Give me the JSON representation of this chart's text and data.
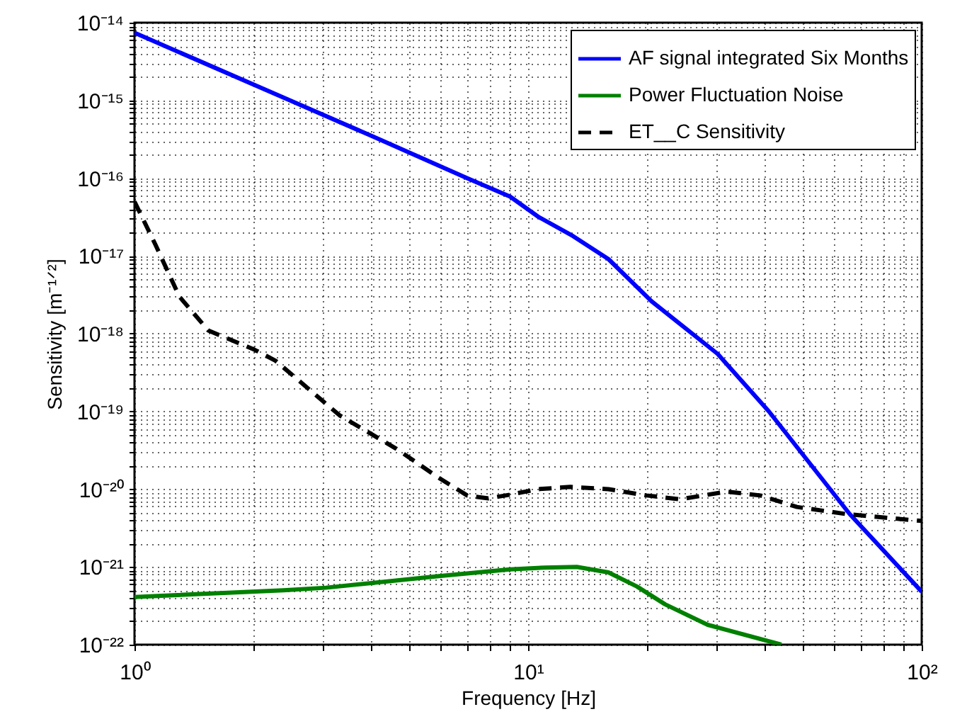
{
  "chart_data": {
    "type": "line",
    "xlabel": "Frequency [Hz]",
    "ylabel": "Sensitivity [m⁻¹ᐟ²]",
    "log": "xy",
    "grid": true,
    "legend": "top right",
    "xlim": [
      1,
      100
    ],
    "ylim": [
      1e-22,
      1e-14
    ],
    "xticks": [
      {
        "value": 1,
        "label": "10⁰"
      },
      {
        "value": 2,
        "label": null
      },
      {
        "value": 3,
        "label": null
      },
      {
        "value": 4,
        "label": null
      },
      {
        "value": 5,
        "label": null
      },
      {
        "value": 6,
        "label": null
      },
      {
        "value": 7,
        "label": null
      },
      {
        "value": 8,
        "label": null
      },
      {
        "value": 9,
        "label": null
      },
      {
        "value": 10,
        "label": "10¹"
      },
      {
        "value": 20,
        "label": null
      },
      {
        "value": 30,
        "label": null
      },
      {
        "value": 40,
        "label": null
      },
      {
        "value": 50,
        "label": null
      },
      {
        "value": 60,
        "label": null
      },
      {
        "value": 70,
        "label": null
      },
      {
        "value": 80,
        "label": null
      },
      {
        "value": 90,
        "label": null
      },
      {
        "value": 100,
        "label": "10²"
      }
    ],
    "yticks": [
      {
        "value": 1e-22,
        "label": "10⁻²²"
      },
      {
        "value": 2e-22,
        "label": null
      },
      {
        "value": 3e-22,
        "label": null
      },
      {
        "value": 4e-22,
        "label": null
      },
      {
        "value": 5e-22,
        "label": null
      },
      {
        "value": 6e-22,
        "label": null
      },
      {
        "value": 7e-22,
        "label": null
      },
      {
        "value": 8e-22,
        "label": null
      },
      {
        "value": 9e-22,
        "label": null
      },
      {
        "value": 1e-21,
        "label": "10⁻²¹"
      },
      {
        "value": 2e-21,
        "label": null
      },
      {
        "value": 3e-21,
        "label": null
      },
      {
        "value": 4e-21,
        "label": null
      },
      {
        "value": 5e-21,
        "label": null
      },
      {
        "value": 6e-21,
        "label": null
      },
      {
        "value": 7e-21,
        "label": null
      },
      {
        "value": 8e-21,
        "label": null
      },
      {
        "value": 9e-21,
        "label": null
      },
      {
        "value": 1e-20,
        "label": "10⁻²⁰"
      },
      {
        "value": 2e-20,
        "label": null
      },
      {
        "value": 3e-20,
        "label": null
      },
      {
        "value": 4e-20,
        "label": null
      },
      {
        "value": 5e-20,
        "label": null
      },
      {
        "value": 6e-20,
        "label": null
      },
      {
        "value": 7e-20,
        "label": null
      },
      {
        "value": 8e-20,
        "label": null
      },
      {
        "value": 9e-20,
        "label": null
      },
      {
        "value": 1e-19,
        "label": "10⁻¹⁹"
      },
      {
        "value": 2e-19,
        "label": null
      },
      {
        "value": 3e-19,
        "label": null
      },
      {
        "value": 4e-19,
        "label": null
      },
      {
        "value": 5e-19,
        "label": null
      },
      {
        "value": 6e-19,
        "label": null
      },
      {
        "value": 7e-19,
        "label": null
      },
      {
        "value": 8e-19,
        "label": null
      },
      {
        "value": 9e-19,
        "label": null
      },
      {
        "value": 1e-18,
        "label": "10⁻¹⁸"
      },
      {
        "value": 2e-18,
        "label": null
      },
      {
        "value": 3e-18,
        "label": null
      },
      {
        "value": 4e-18,
        "label": null
      },
      {
        "value": 5e-18,
        "label": null
      },
      {
        "value": 6e-18,
        "label": null
      },
      {
        "value": 7e-18,
        "label": null
      },
      {
        "value": 8e-18,
        "label": null
      },
      {
        "value": 9e-18,
        "label": null
      },
      {
        "value": 1e-17,
        "label": "10⁻¹⁷"
      },
      {
        "value": 2e-17,
        "label": null
      },
      {
        "value": 3e-17,
        "label": null
      },
      {
        "value": 4e-17,
        "label": null
      },
      {
        "value": 5e-17,
        "label": null
      },
      {
        "value": 6e-17,
        "label": null
      },
      {
        "value": 7e-17,
        "label": null
      },
      {
        "value": 8e-17,
        "label": null
      },
      {
        "value": 9e-17,
        "label": null
      },
      {
        "value": 1e-16,
        "label": "10⁻¹⁶"
      },
      {
        "value": 2e-16,
        "label": null
      },
      {
        "value": 3e-16,
        "label": null
      },
      {
        "value": 4e-16,
        "label": null
      },
      {
        "value": 5e-16,
        "label": null
      },
      {
        "value": 6e-16,
        "label": null
      },
      {
        "value": 7e-16,
        "label": null
      },
      {
        "value": 8e-16,
        "label": null
      },
      {
        "value": 9e-16,
        "label": null
      },
      {
        "value": 1e-15,
        "label": "10⁻¹⁵"
      },
      {
        "value": 2e-15,
        "label": null
      },
      {
        "value": 3e-15,
        "label": null
      },
      {
        "value": 4e-15,
        "label": null
      },
      {
        "value": 5e-15,
        "label": null
      },
      {
        "value": 6e-15,
        "label": null
      },
      {
        "value": 7e-15,
        "label": null
      },
      {
        "value": 8e-15,
        "label": null
      },
      {
        "value": 9e-15,
        "label": null
      },
      {
        "value": 1e-14,
        "label": "10⁻¹⁴"
      }
    ],
    "series": [
      {
        "name": "AF signal integrated Six Months",
        "color": "#0000ff",
        "line_style": "solid",
        "x": [
          1,
          2.38,
          4,
          7,
          9,
          10.6,
          13,
          16,
          20.6,
          30.3,
          40.9,
          65.6,
          100
        ],
        "values": [
          7.4e-15,
          1.1e-15,
          3.5e-16,
          1e-16,
          5.8e-17,
          3.2e-17,
          1.8e-17,
          9.1e-18,
          2.6e-18,
          5.5e-19,
          1e-19,
          4.8e-21,
          4.8e-22
        ]
      },
      {
        "name": "Power Fluctuation Noise",
        "color": "#008000",
        "line_style": "solid",
        "x": [
          1,
          2.39,
          3.06,
          5.93,
          8.98,
          11,
          13.3,
          16,
          18.9,
          22.3,
          28.6,
          44
        ],
        "values": [
          4.1e-22,
          5e-22,
          5.4e-22,
          7.6e-22,
          9.3e-22,
          9.8e-22,
          1e-21,
          8.5e-22,
          5.6e-22,
          3.3e-22,
          1.8e-22,
          1e-22
        ]
      },
      {
        "name": "ET__C Sensitivity",
        "color": "#000000",
        "line_style": "dashed",
        "x": [
          1,
          1.13,
          1.3,
          1.54,
          2.02,
          2.28,
          3.32,
          4.63,
          5.93,
          7.0,
          7.92,
          9,
          10.6,
          12.8,
          16,
          20,
          24.3,
          31.9,
          38.9,
          48.2,
          64,
          100
        ],
        "values": [
          5e-17,
          1.4e-17,
          3e-18,
          1.1e-18,
          6.2e-19,
          4.5e-19,
          8.9e-20,
          3.3e-20,
          1.4e-20,
          8.3e-21,
          7.6e-21,
          8.5e-21,
          1e-20,
          1.07e-20,
          1e-20,
          8.3e-21,
          7.4e-21,
          9.3e-21,
          8.3e-21,
          5.9e-21,
          4.8e-21,
          3.9e-21
        ]
      }
    ]
  }
}
